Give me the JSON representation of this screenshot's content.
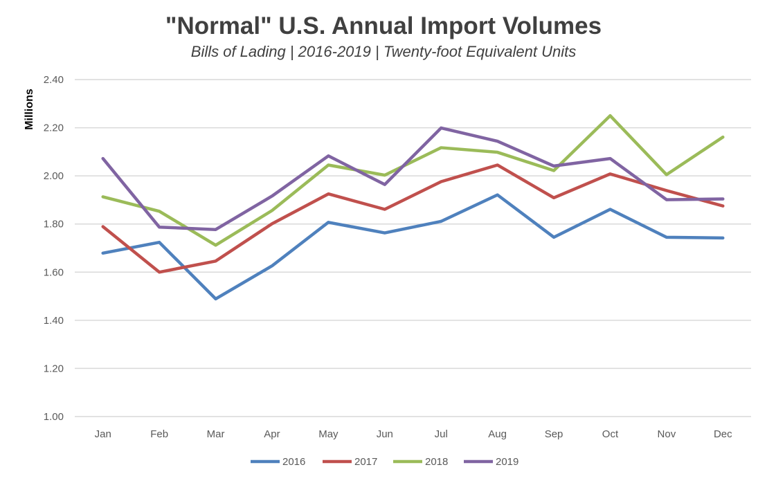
{
  "chart_data": {
    "type": "line",
    "title": "\"Normal\" U.S. Annual Import Volumes",
    "subtitle": "Bills of Lading | 2016-2019 | Twenty-foot Equivalent Units",
    "xlabel": "",
    "ylabel": "Millions",
    "ylim": [
      1.0,
      2.4
    ],
    "yticks": [
      "1.00",
      "1.20",
      "1.40",
      "1.60",
      "1.80",
      "2.00",
      "2.20",
      "2.40"
    ],
    "grid": true,
    "legend": "bottom",
    "categories": [
      "Jan",
      "Feb",
      "Mar",
      "Apr",
      "May",
      "Jun",
      "Jul",
      "Aug",
      "Sep",
      "Oct",
      "Nov",
      "Dec"
    ],
    "series": [
      {
        "name": "2016",
        "color": "#4f81bd",
        "values": [
          1.679,
          1.724,
          1.489,
          1.626,
          1.807,
          1.763,
          1.811,
          1.921,
          1.745,
          1.861,
          1.745,
          1.742
        ]
      },
      {
        "name": "2017",
        "color": "#c0504d",
        "values": [
          1.789,
          1.6,
          1.646,
          1.801,
          1.925,
          1.861,
          1.976,
          2.045,
          1.909,
          2.008,
          1.939,
          1.875
        ]
      },
      {
        "name": "2018",
        "color": "#9bbb59",
        "values": [
          1.913,
          1.853,
          1.712,
          1.856,
          2.045,
          2.003,
          2.117,
          2.098,
          2.022,
          2.25,
          2.005,
          2.161
        ]
      },
      {
        "name": "2019",
        "color": "#8064a2",
        "values": [
          2.072,
          1.787,
          1.777,
          1.916,
          2.083,
          1.964,
          2.199,
          2.144,
          2.041,
          2.072,
          1.901,
          1.904
        ]
      }
    ]
  }
}
